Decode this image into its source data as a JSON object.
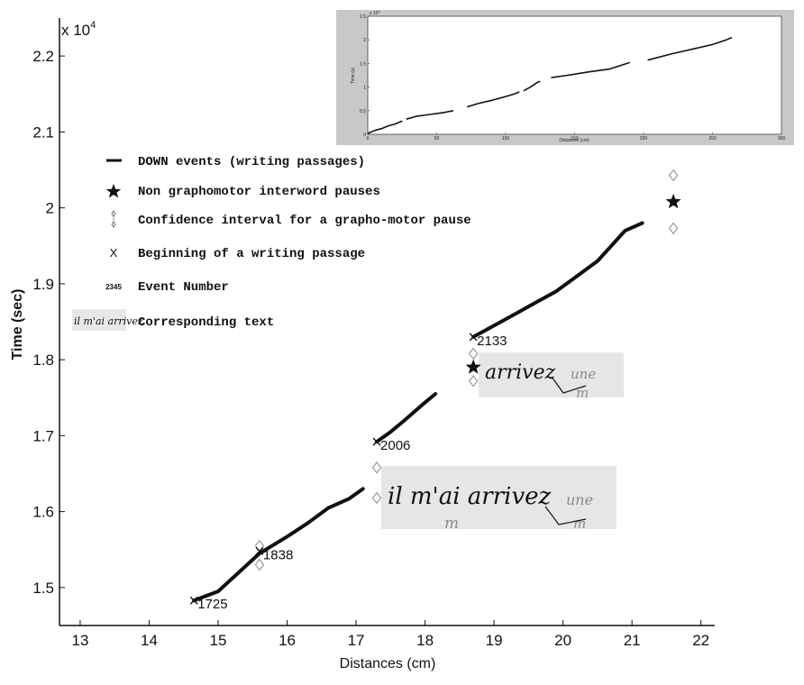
{
  "chart_data": [
    {
      "type": "line",
      "id": "main",
      "xlabel": "Distances (cm)",
      "ylabel": "Time (sec)",
      "y_multiplier": "x 10",
      "y_multiplier_exp": "4",
      "xlim": [
        12.7,
        22.2
      ],
      "ylim": [
        1.45,
        2.25
      ],
      "x_ticks": [
        "13",
        "14",
        "15",
        "16",
        "17",
        "18",
        "19",
        "20",
        "21",
        "22"
      ],
      "y_ticks": [
        "1.5",
        "1.6",
        "1.7",
        "1.8",
        "1.9",
        "2",
        "2.1",
        "2.2"
      ],
      "grid": false,
      "legend_position": "upper-left",
      "legend": [
        {
          "symbol": "line",
          "label": "DOWN events (writing passages)"
        },
        {
          "symbol": "star",
          "label": "Non graphomotor interword pauses"
        },
        {
          "symbol": "diamonds",
          "label": "Confidence interval for a grapho-motor pause"
        },
        {
          "symbol": "x",
          "label": "Beginning of a writing passage"
        },
        {
          "symbol": "number",
          "sample": "2345",
          "label": "Event Number"
        },
        {
          "symbol": "image",
          "sample": "il m'ai arrivez",
          "label": "Corresponding text"
        }
      ],
      "series": [
        {
          "segments": [
            [
              [
                14.65,
                1.483
              ],
              [
                15.0,
                1.495
              ],
              [
                15.3,
                1.52
              ],
              [
                15.6,
                1.545
              ],
              [
                16.0,
                1.567
              ],
              [
                16.3,
                1.585
              ],
              [
                16.6,
                1.605
              ],
              [
                16.9,
                1.617
              ],
              [
                17.1,
                1.63
              ]
            ],
            [
              [
                17.3,
                1.692
              ],
              [
                17.5,
                1.705
              ],
              [
                17.7,
                1.72
              ],
              [
                17.95,
                1.74
              ],
              [
                18.15,
                1.755
              ]
            ],
            [
              [
                18.7,
                1.83
              ],
              [
                19.0,
                1.845
              ],
              [
                19.3,
                1.86
              ],
              [
                19.6,
                1.875
              ],
              [
                19.9,
                1.89
              ],
              [
                20.2,
                1.91
              ],
              [
                20.5,
                1.93
              ],
              [
                20.7,
                1.95
              ],
              [
                20.9,
                1.97
              ],
              [
                21.15,
                1.98
              ]
            ]
          ]
        }
      ],
      "beginnings": [
        [
          14.65,
          1.483
        ],
        [
          15.6,
          1.548
        ],
        [
          17.3,
          1.692
        ],
        [
          18.7,
          1.83
        ]
      ],
      "event_numbers": [
        {
          "x": 14.65,
          "y": 1.483,
          "label": "1725"
        },
        {
          "x": 15.6,
          "y": 1.548,
          "label": "1838"
        },
        {
          "x": 17.3,
          "y": 1.692,
          "label": "2006"
        },
        {
          "x": 18.7,
          "y": 1.83,
          "label": "2133"
        }
      ],
      "pauses": [
        [
          18.7,
          1.79
        ],
        [
          21.6,
          2.008
        ]
      ],
      "confidence_diamonds": [
        [
          15.6,
          1.555
        ],
        [
          15.6,
          1.53
        ],
        [
          17.3,
          1.658
        ],
        [
          17.3,
          1.618
        ],
        [
          18.7,
          1.808
        ],
        [
          18.7,
          1.772
        ],
        [
          21.6,
          2.043
        ],
        [
          21.6,
          1.973
        ]
      ],
      "text_insets": [
        {
          "text": "arrivez",
          "faint": [
            "une",
            "m"
          ]
        },
        {
          "text": "il m'ai arrivez",
          "faint": [
            "une",
            "m"
          ]
        }
      ]
    },
    {
      "type": "line",
      "id": "inset-overview",
      "xlabel": "Distances (cm)",
      "ylabel": "Time (s)",
      "y_multiplier": "x 10",
      "y_multiplier_exp": "4",
      "xlim": [
        0,
        300
      ],
      "ylim": [
        0,
        2.5
      ],
      "x_ticks": [
        "0",
        "50",
        "100",
        "150",
        "200",
        "250",
        "300"
      ],
      "y_ticks": [
        "0",
        "0.5",
        "1",
        "1.5",
        "2",
        "2.5"
      ],
      "series": [
        {
          "segments": [
            [
              [
                0,
                0.02
              ],
              [
                5,
                0.08
              ],
              [
                10,
                0.12
              ],
              [
                15,
                0.18
              ],
              [
                20,
                0.22
              ],
              [
                25,
                0.28
              ]
            ],
            [
              [
                28,
                0.32
              ],
              [
                35,
                0.38
              ],
              [
                45,
                0.42
              ],
              [
                55,
                0.46
              ],
              [
                62,
                0.5
              ]
            ],
            [
              [
                72,
                0.58
              ],
              [
                80,
                0.65
              ],
              [
                90,
                0.72
              ],
              [
                100,
                0.8
              ],
              [
                107,
                0.86
              ],
              [
                110,
                0.9
              ]
            ],
            [
              [
                113,
                0.92
              ],
              [
                118,
                1.0
              ],
              [
                123,
                1.1
              ],
              [
                125,
                1.12
              ]
            ],
            [
              [
                133,
                1.2
              ],
              [
                145,
                1.25
              ],
              [
                160,
                1.32
              ],
              [
                175,
                1.38
              ],
              [
                190,
                1.52
              ]
            ],
            [
              [
                203,
                1.57
              ],
              [
                220,
                1.7
              ],
              [
                235,
                1.8
              ],
              [
                250,
                1.9
              ],
              [
                260,
                2.0
              ],
              [
                264,
                2.05
              ]
            ]
          ]
        }
      ]
    }
  ]
}
